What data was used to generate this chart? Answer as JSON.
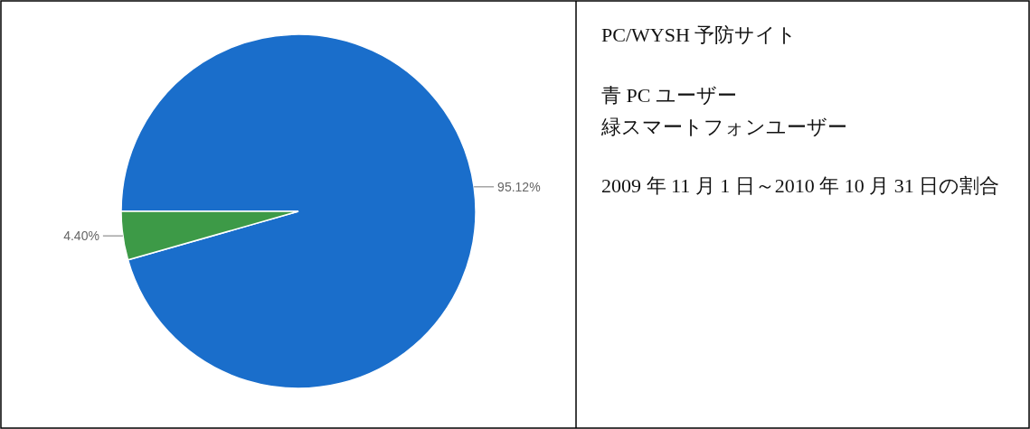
{
  "chart_data": {
    "type": "pie",
    "title": "PC/WYSH 予防サイト",
    "categories": [
      null,
      null
    ],
    "values": [
      95.12,
      4.4
    ],
    "colors": [
      "#1a6ecb",
      "#3d9a47"
    ],
    "value_labels": [
      "95.12%",
      "4.40%"
    ],
    "annotations": [
      "青 PC ユーザー",
      "緑スマートフォンユーザー",
      "2009 年 11 月 1 日～2010 年 10 月 31 日の割合"
    ]
  }
}
